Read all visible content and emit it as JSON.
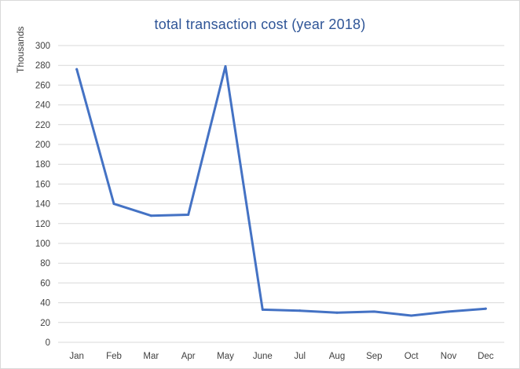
{
  "chart_data": {
    "type": "line",
    "title": "total transaction cost (year 2018)",
    "ylabel": "Thousands",
    "xlabel": "",
    "categories": [
      "Jan",
      "Feb",
      "Mar",
      "Apr",
      "May",
      "June",
      "Jul",
      "Aug",
      "Sep",
      "Oct",
      "Nov",
      "Dec"
    ],
    "series": [
      {
        "values": [
          276,
          140,
          128,
          129,
          279,
          33,
          32,
          30,
          31,
          27,
          31,
          34
        ]
      }
    ],
    "ylim": [
      0,
      300
    ],
    "yticks": [
      0,
      20,
      40,
      60,
      80,
      100,
      120,
      140,
      160,
      180,
      200,
      220,
      240,
      260,
      280,
      300
    ],
    "grid": true,
    "legend": "none",
    "colors": {
      "line": "#4472c4",
      "grid": "#d9d9d9",
      "title": "#2f5597",
      "text": "#404040"
    }
  }
}
